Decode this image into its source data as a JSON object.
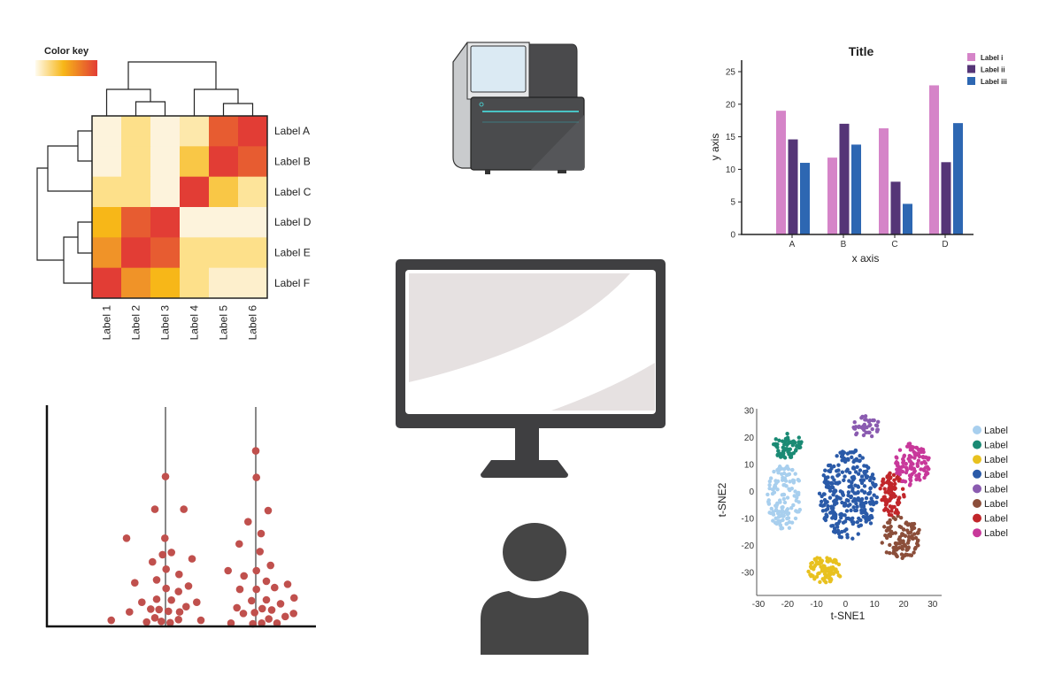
{
  "chart_data": [
    {
      "type": "heatmap",
      "title": "Color key",
      "rows": [
        "Label A",
        "Label B",
        "Label C",
        "Label D",
        "Label E",
        "Label F"
      ],
      "columns": [
        "Label 1",
        "Label 2",
        "Label 3",
        "Label 4",
        "Label 5",
        "Label 6"
      ],
      "values": [
        [
          0.0,
          0.25,
          0.0,
          0.15,
          0.9,
          1.0
        ],
        [
          0.0,
          0.25,
          0.0,
          0.4,
          1.0,
          0.9
        ],
        [
          0.25,
          0.25,
          0.0,
          1.0,
          0.4,
          0.2
        ],
        [
          0.5,
          0.9,
          1.0,
          0.0,
          0.0,
          0.0
        ],
        [
          0.7,
          1.0,
          0.9,
          0.25,
          0.25,
          0.25
        ],
        [
          1.0,
          0.7,
          0.5,
          0.25,
          0.05,
          0.05
        ]
      ],
      "color_scale": [
        "#fdf3dc",
        "#fde08a",
        "#f7b718",
        "#ee8a2c",
        "#e23d35"
      ]
    },
    {
      "type": "bar",
      "title": "Title",
      "xlabel": "x axis",
      "ylabel": "y axis",
      "categories": [
        "A",
        "B",
        "C",
        "D"
      ],
      "ylim": [
        0,
        27
      ],
      "yticks": [
        0,
        5,
        10,
        15,
        20,
        25
      ],
      "legend_position": "top-right",
      "series": [
        {
          "name": "Label i",
          "color": "#d584c8",
          "values": [
            19.0,
            11.8,
            16.3,
            22.9
          ]
        },
        {
          "name": "Label ii",
          "color": "#553577",
          "values": [
            14.6,
            17.0,
            8.1,
            11.1
          ]
        },
        {
          "name": "Label iii",
          "color": "#2d67b2",
          "values": [
            11.0,
            13.8,
            4.7,
            17.1
          ]
        }
      ]
    },
    {
      "type": "scatter",
      "subtype": "strip",
      "color": "#c0504d",
      "ylim": [
        0,
        100
      ],
      "groups": [
        {
          "points": [
            [
              0,
              68.3
            ],
            [
              -12,
              53.4
            ],
            [
              20.7,
              53.4
            ],
            [
              -44,
              40.2
            ],
            [
              -0.7,
              40.2
            ],
            [
              -3.3,
              32.7
            ],
            [
              6.7,
              33.7
            ],
            [
              -14.7,
              29.4
            ],
            [
              30,
              30.8
            ],
            [
              0.7,
              26.1
            ],
            [
              15.3,
              23.7
            ],
            [
              -10,
              21.2
            ],
            [
              -34.7,
              19.9
            ],
            [
              0.7,
              17.3
            ],
            [
              14.7,
              15.9
            ],
            [
              26,
              18.4
            ],
            [
              -10,
              12.4
            ],
            [
              6.7,
              12.0
            ],
            [
              -26.7,
              11.0
            ],
            [
              35.3,
              11.0
            ],
            [
              -16.7,
              7.9
            ],
            [
              -7.3,
              7.7
            ],
            [
              3.3,
              6.9
            ],
            [
              16,
              6.6
            ],
            [
              23.3,
              9.0
            ],
            [
              -40.7,
              6.6
            ],
            [
              -61.3,
              2.8
            ],
            [
              -21.3,
              2.0
            ],
            [
              -12,
              3.9
            ],
            [
              -4.7,
              2.3
            ],
            [
              5.3,
              1.7
            ],
            [
              14.7,
              3.1
            ],
            [
              40,
              2.8
            ]
          ]
        },
        {
          "points": [
            [
              0,
              80.0
            ],
            [
              0.7,
              67.9
            ],
            [
              14,
              52.8
            ],
            [
              -8.7,
              47.7
            ],
            [
              6,
              42.3
            ],
            [
              -18.7,
              37.6
            ],
            [
              4.7,
              34.1
            ],
            [
              16.7,
              27.8
            ],
            [
              -31.3,
              25.4
            ],
            [
              0.7,
              25.4
            ],
            [
              -13.3,
              23.0
            ],
            [
              12,
              20.6
            ],
            [
              21.3,
              17.7
            ],
            [
              36,
              19.2
            ],
            [
              -18,
              16.9
            ],
            [
              0.7,
              16.9
            ],
            [
              43.3,
              13.0
            ],
            [
              -4.7,
              11.7
            ],
            [
              12,
              12.1
            ],
            [
              28,
              10.3
            ],
            [
              -21.3,
              8.5
            ],
            [
              -14,
              5.9
            ],
            [
              -1.3,
              6.3
            ],
            [
              7.3,
              8.1
            ],
            [
              18,
              7.5
            ],
            [
              42.7,
              5.9
            ],
            [
              33.3,
              4.5
            ],
            [
              -28,
              1.5
            ],
            [
              -3.3,
              1.2
            ],
            [
              6.7,
              1.5
            ],
            [
              14.7,
              3.4
            ],
            [
              24,
              1.5
            ]
          ]
        }
      ]
    },
    {
      "type": "scatter",
      "xlabel": "t-SNE1",
      "ylabel": "t-SNE2",
      "xlim": [
        -30,
        30
      ],
      "ylim": [
        -35,
        30
      ],
      "xticks": [
        -30,
        -20,
        -10,
        0,
        10,
        20,
        30
      ],
      "yticks": [
        30,
        20,
        10,
        0,
        -10,
        -20,
        -30
      ],
      "legend_position": "right",
      "clusters": [
        {
          "name": "Label",
          "color": "#a8cfee",
          "center": [
            -21,
            -2
          ],
          "spread": [
            6,
            12
          ],
          "n": 130
        },
        {
          "name": "Label",
          "color": "#1a8a74",
          "center": [
            -20,
            17
          ],
          "spread": [
            5,
            5
          ],
          "n": 60
        },
        {
          "name": "Label",
          "color": "#e8c11f",
          "center": [
            -7,
            -29
          ],
          "spread": [
            6,
            5
          ],
          "n": 80
        },
        {
          "name": "Label",
          "color": "#2a5aa8",
          "center": [
            1,
            -1
          ],
          "spread": [
            10,
            17
          ],
          "n": 300
        },
        {
          "name": "Label",
          "color": "#8a5bb0",
          "center": [
            7,
            24
          ],
          "spread": [
            5,
            4
          ],
          "n": 40
        },
        {
          "name": "Label",
          "color": "#8b4e3a",
          "center": [
            19,
            -17
          ],
          "spread": [
            7,
            8
          ],
          "n": 110
        },
        {
          "name": "Label",
          "color": "#c1262a",
          "center": [
            16,
            -1
          ],
          "spread": [
            4.5,
            8
          ],
          "n": 90
        },
        {
          "name": "Label",
          "color": "#c8389a",
          "center": [
            23,
            10
          ],
          "spread": [
            6,
            8
          ],
          "n": 110
        }
      ]
    }
  ]
}
